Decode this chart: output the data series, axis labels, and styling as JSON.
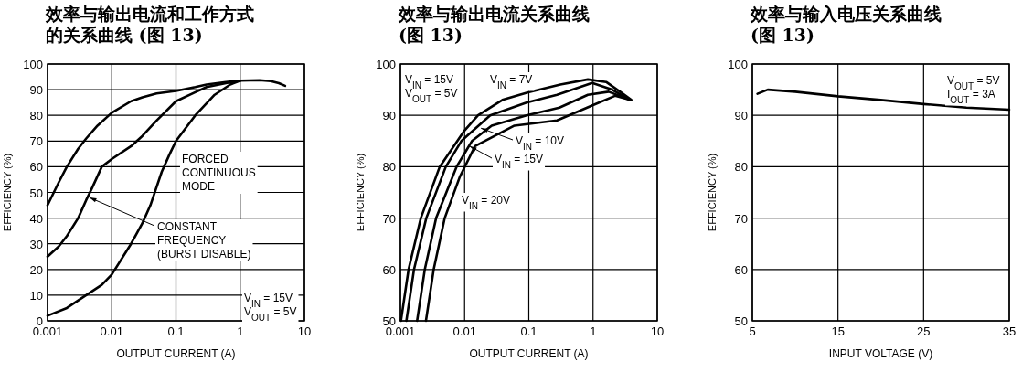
{
  "chart_data": [
    {
      "type": "line",
      "title": "效率与输出电流和工作方式的关系曲线 (图 13)",
      "xlabel": "OUTPUT CURRENT (A)",
      "ylabel": "EFFICIENCY (%)",
      "log": "x",
      "xlim": [
        0.001,
        10
      ],
      "xticks": [
        0.001,
        0.01,
        0.1,
        1,
        10
      ],
      "ylim": [
        0,
        100
      ],
      "yticks": [
        0,
        10,
        20,
        30,
        40,
        50,
        60,
        70,
        80,
        90,
        100
      ],
      "grid": true,
      "marker": "none",
      "line_style": "solid",
      "series": [
        {
          "color": "#000000",
          "x": [
            0.001,
            0.0015,
            0.002,
            0.003,
            0.004,
            0.006,
            0.01,
            0.02,
            0.03,
            0.05,
            0.1,
            0.2,
            0.3,
            0.6,
            1,
            2,
            3,
            4,
            5
          ],
          "values": [
            45,
            54,
            60,
            67,
            71,
            76,
            81,
            85.5,
            87,
            88.5,
            89.5,
            91,
            92,
            93,
            93.5,
            93.7,
            93.3,
            92.5,
            91.5
          ]
        },
        {
          "color": "#000000",
          "x": [
            0.001,
            0.0015,
            0.002,
            0.003,
            0.004,
            0.005,
            0.007,
            0.01,
            0.02,
            0.03,
            0.05,
            0.1,
            0.2,
            0.3,
            0.6,
            1
          ],
          "values": [
            25,
            29,
            33,
            40,
            47,
            52,
            60,
            63,
            68,
            72,
            78,
            85.5,
            89,
            91,
            92.5,
            93.5
          ]
        },
        {
          "color": "#000000",
          "x": [
            0.001,
            0.002,
            0.004,
            0.007,
            0.01,
            0.02,
            0.03,
            0.04,
            0.06,
            0.08,
            0.1,
            0.2,
            0.4,
            0.7,
            1
          ],
          "values": [
            2,
            5,
            10,
            14,
            18,
            30,
            38,
            45,
            58,
            65,
            70,
            80,
            88,
            92,
            93.5
          ]
        }
      ],
      "annotations": [
        "FORCED\nCONTINUOUS\nMODE",
        {
          "text": "CONSTANT\nFREQUENCY\n(BURST DISABLE)",
          "x": 0.0045,
          "y": 48
        },
        "V$_{IN}$ = 15V\nV$_{OUT}$ = 5V"
      ]
    },
    {
      "type": "line",
      "title": "效率与输出电流关系曲线 (图 13)",
      "xlabel": "OUTPUT CURRENT (A)",
      "ylabel": "EFFICIENCY (%)",
      "log": "x",
      "xlim": [
        0.001,
        10
      ],
      "xticks": [
        0.001,
        0.01,
        0.1,
        1,
        10
      ],
      "ylim": [
        50,
        100
      ],
      "yticks": [
        50,
        60,
        70,
        80,
        90,
        100
      ],
      "grid": true,
      "marker": "none",
      "line_style": "solid",
      "series": [
        {
          "color": "#000000",
          "x": [
            0.00102,
            0.00134,
            0.00208,
            0.0041,
            0.0099,
            0.0162,
            0.0388,
            0.098,
            0.31,
            0.83,
            1.6,
            2.7,
            3.95
          ],
          "values": [
            50,
            60,
            70,
            80,
            87,
            90,
            93,
            94.5,
            96,
            97,
            96.5,
            94.5,
            93
          ]
        },
        {
          "color": "#000000",
          "x": [
            0.00124,
            0.00163,
            0.00253,
            0.0051,
            0.0089,
            0.025,
            0.092,
            0.275,
            0.97,
            1.97,
            3.8
          ],
          "values": [
            50,
            60,
            70,
            80,
            85,
            90,
            92.5,
            94,
            96.3,
            95,
            93
          ]
        },
        {
          "color": "#000000",
          "x": [
            0.00182,
            0.0024,
            0.0036,
            0.0075,
            0.013,
            0.0264,
            0.092,
            0.3,
            0.83,
            1.75,
            3.8
          ],
          "values": [
            50,
            60,
            70,
            80,
            85,
            88,
            90,
            91.5,
            94,
            94.6,
            93
          ]
        },
        {
          "color": "#000000",
          "x": [
            0.0025,
            0.0033,
            0.0049,
            0.0084,
            0.0145,
            0.0597,
            0.275,
            1.0,
            2.2,
            3.8
          ],
          "values": [
            50,
            60,
            70,
            78,
            84,
            88,
            89,
            92,
            93.8,
            93
          ]
        }
      ],
      "annotations": [
        "V$_{IN}$ = 15V\nV$_{OUT}$ = 5V",
        "V$_{IN}$ = 7V",
        {
          "text": "V$_{IN}$ = 10V",
          "x": 0.018,
          "y": 87.5
        },
        {
          "text": "V$_{IN}$ = 15V",
          "x": 0.012,
          "y": 84
        },
        "V$_{IN}$ = 20V"
      ]
    },
    {
      "type": "line",
      "title": "效率与输入电压关系曲线 (图 13)",
      "xlabel": "INPUT VOLTAGE (V)",
      "ylabel": "EFFICIENCY (%)",
      "xlim": [
        5,
        35
      ],
      "xticks": [
        5,
        15,
        25,
        35
      ],
      "ylim": [
        50,
        100
      ],
      "yticks": [
        50,
        60,
        70,
        80,
        90,
        100
      ],
      "grid": true,
      "marker": "none",
      "line_style": "solid",
      "series": [
        {
          "color": "#000000",
          "x": [
            5.6,
            6.8,
            10,
            15,
            20,
            25,
            30,
            35
          ],
          "values": [
            94.2,
            95,
            94.6,
            93.7,
            93,
            92.2,
            91.5,
            91.1
          ]
        }
      ],
      "annotations": [
        "V$_{OUT}$ = 5V\nI$_{OUT}$ = 3A"
      ]
    }
  ]
}
